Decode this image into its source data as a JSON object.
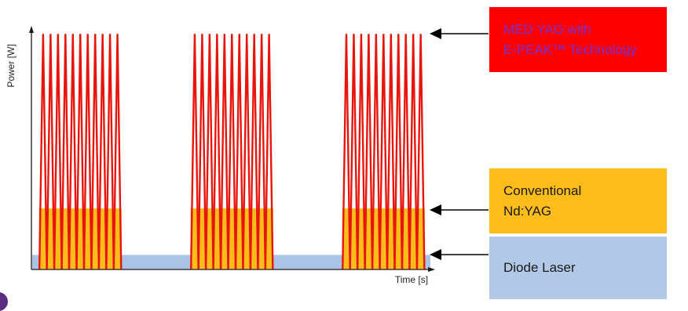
{
  "chart_data": {
    "type": "line",
    "xlabel": "Time [s]",
    "ylabel": "Power [W]",
    "ylim": [
      0,
      1.0
    ],
    "xlim": [
      0,
      10
    ],
    "grid": false,
    "legend_position": "right",
    "series": [
      {
        "name": "Diode Laser",
        "kind": "continuous",
        "level": 0.06,
        "x_range": [
          0,
          10
        ],
        "color": "#abc4e6"
      },
      {
        "name": "Conventional Nd:YAG",
        "kind": "pulse-trains",
        "level": 0.25,
        "trains": [
          [
            0.2,
            2.25
          ],
          [
            4.0,
            6.05
          ],
          [
            7.8,
            9.85
          ]
        ],
        "color": "#fcbc1a",
        "edge_color": "#f2c230"
      },
      {
        "name": "MED YAG with E-PEAK™ Technology",
        "kind": "spike-trains",
        "level": 0.97,
        "pulses_per_train": 11,
        "trains": [
          [
            0.2,
            2.25
          ],
          [
            4.0,
            6.05
          ],
          [
            7.8,
            9.85
          ]
        ],
        "color": "#e8150d"
      }
    ]
  },
  "legend": {
    "pulsed": {
      "line1": "MED YAG with",
      "line2": "E-PEAK™ Technology",
      "background": "#fe0000"
    },
    "conventional": {
      "line1": "Conventional",
      "line2": "Nd:YAG",
      "background": "#fcbc1a"
    },
    "diode": {
      "line1": "Diode Laser",
      "background": "#b2c8e7"
    }
  },
  "colors": {
    "axis": "#1a1a1a",
    "arrow": "#000000",
    "accent": "#5a2d82"
  }
}
